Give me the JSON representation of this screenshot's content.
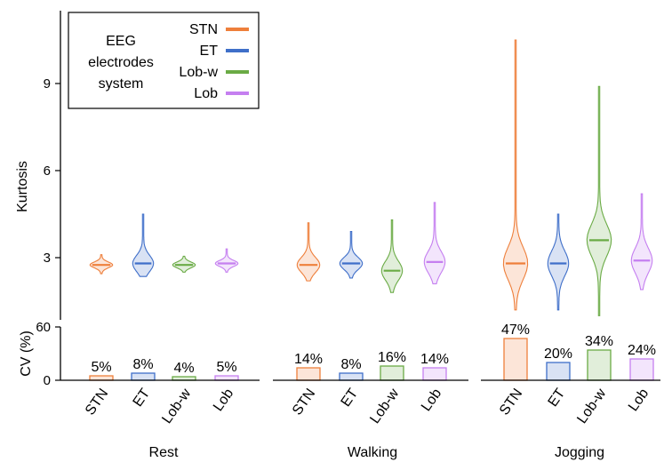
{
  "chart_data": {
    "type": "violin",
    "ylabel": "Kurtosis",
    "ylim": [
      1.0,
      11.3
    ],
    "yticks": [
      3,
      6,
      9
    ],
    "groups": [
      "Rest",
      "Walking",
      "Jogging"
    ],
    "categories": [
      "STN",
      "ET",
      "Lob-w",
      "Lob"
    ],
    "colors": {
      "STN": "#ee7f3b",
      "ET": "#3f6fc9",
      "Lob-w": "#6aab45",
      "Lob": "#c57ff0"
    },
    "legend": {
      "title": "EEG electrodes system",
      "entries": [
        "STN",
        "ET",
        "Lob-w",
        "Lob"
      ],
      "placement": "top-left"
    },
    "series": [
      {
        "group": "Rest",
        "name": "STN",
        "min": 2.45,
        "max": 3.1,
        "median": 2.75,
        "cv": "5%",
        "cv_value": 5
      },
      {
        "group": "Rest",
        "name": "ET",
        "min": 2.35,
        "max": 4.5,
        "median": 2.8,
        "cv": "8%",
        "cv_value": 8
      },
      {
        "group": "Rest",
        "name": "Lob-w",
        "min": 2.5,
        "max": 3.05,
        "median": 2.75,
        "cv": "4%",
        "cv_value": 4
      },
      {
        "group": "Rest",
        "name": "Lob",
        "min": 2.5,
        "max": 3.3,
        "median": 2.8,
        "cv": "5%",
        "cv_value": 5
      },
      {
        "group": "Walking",
        "name": "STN",
        "min": 2.2,
        "max": 4.2,
        "median": 2.75,
        "cv": "14%",
        "cv_value": 14
      },
      {
        "group": "Walking",
        "name": "ET",
        "min": 2.3,
        "max": 3.9,
        "median": 2.8,
        "cv": "8%",
        "cv_value": 8
      },
      {
        "group": "Walking",
        "name": "Lob-w",
        "min": 1.8,
        "max": 4.3,
        "median": 2.55,
        "cv": "16%",
        "cv_value": 16
      },
      {
        "group": "Walking",
        "name": "Lob",
        "min": 2.1,
        "max": 4.9,
        "median": 2.85,
        "cv": "14%",
        "cv_value": 14
      },
      {
        "group": "Jogging",
        "name": "STN",
        "min": 1.2,
        "max": 10.5,
        "median": 2.8,
        "cv": "47%",
        "cv_value": 47
      },
      {
        "group": "Jogging",
        "name": "ET",
        "min": 1.2,
        "max": 4.5,
        "median": 2.8,
        "cv": "20%",
        "cv_value": 20
      },
      {
        "group": "Jogging",
        "name": "Lob-w",
        "min": 1.0,
        "max": 8.9,
        "median": 3.6,
        "cv": "34%",
        "cv_value": 34
      },
      {
        "group": "Jogging",
        "name": "Lob",
        "min": 1.9,
        "max": 5.2,
        "median": 2.9,
        "cv": "24%",
        "cv_value": 24
      }
    ],
    "cv_panel": {
      "ylabel": "CV (%)",
      "ylim": [
        0,
        60
      ],
      "yticks": [
        0,
        60
      ]
    }
  }
}
